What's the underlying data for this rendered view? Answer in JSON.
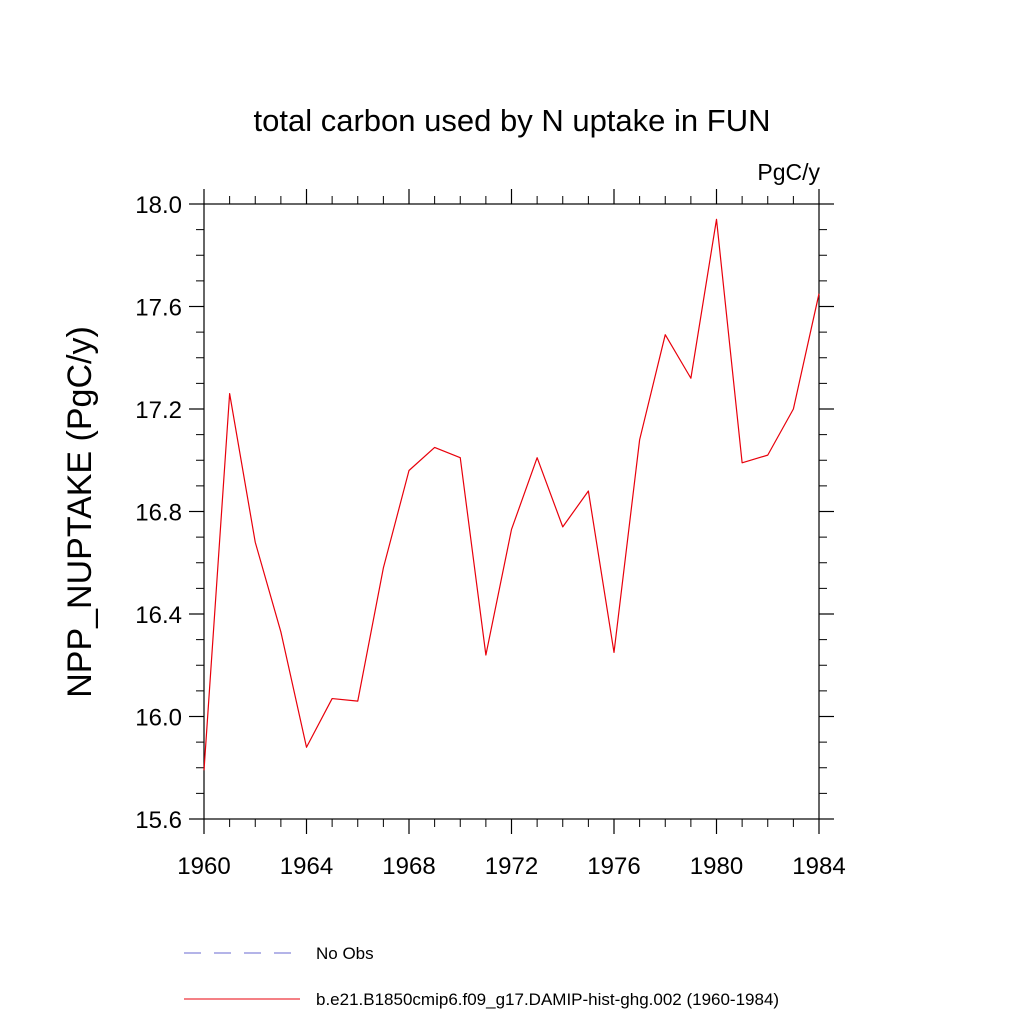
{
  "chart_data": {
    "type": "line",
    "title": "total carbon used by N uptake in FUN",
    "units_label": "PgC/y",
    "ylabel": "NPP_NUPTAKE  (PgC/y)",
    "xlabel": "",
    "xlim": [
      1960,
      1984
    ],
    "ylim": [
      15.6,
      18.0
    ],
    "x_ticks": [
      1960,
      1964,
      1968,
      1972,
      1976,
      1980,
      1984
    ],
    "x_tick_labels": [
      "1960",
      "1964",
      "1968",
      "1972",
      "1976",
      "1980",
      "1984"
    ],
    "y_ticks": [
      15.6,
      16.0,
      16.4,
      16.8,
      17.2,
      17.6,
      18.0
    ],
    "y_tick_labels": [
      "15.6",
      "16.0",
      "16.4",
      "16.8",
      "17.2",
      "17.6",
      "18.0"
    ],
    "x_minor_step": 1,
    "y_minor_step": 0.1,
    "grid": false,
    "legend_position": "bottom",
    "series": [
      {
        "name": "b.e21.B1850cmip6.f09_g17.DAMIP-hist-ghg.002 (1960-1984)",
        "color": "#e8000b",
        "style": "solid",
        "x": [
          1960,
          1961,
          1962,
          1963,
          1964,
          1965,
          1966,
          1967,
          1968,
          1969,
          1970,
          1971,
          1972,
          1973,
          1974,
          1975,
          1976,
          1977,
          1978,
          1979,
          1980,
          1981,
          1982,
          1983,
          1984
        ],
        "values": [
          15.79,
          17.26,
          16.68,
          16.33,
          15.88,
          16.07,
          16.06,
          16.58,
          16.96,
          17.05,
          17.01,
          16.24,
          16.73,
          17.01,
          16.74,
          16.88,
          16.25,
          17.08,
          17.49,
          17.32,
          17.94,
          16.99,
          17.02,
          17.2,
          17.65
        ]
      }
    ],
    "legend": [
      {
        "label": "No Obs",
        "color": "#6a6ad0",
        "style": "dashed"
      },
      {
        "label": "b.e21.B1850cmip6.f09_g17.DAMIP-hist-ghg.002 (1960-1984)",
        "color": "#e8000b",
        "style": "solid"
      }
    ]
  }
}
